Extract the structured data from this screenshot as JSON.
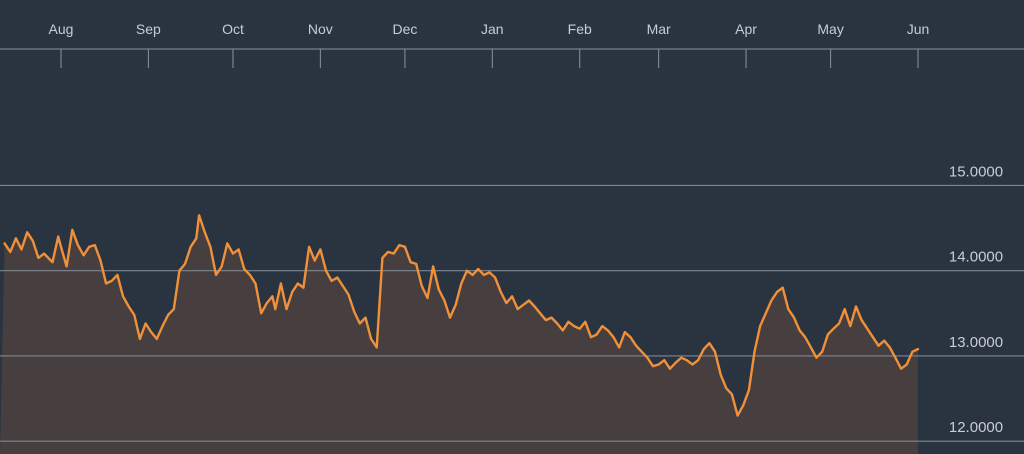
{
  "colors": {
    "background": "#2a3340",
    "line": "#f0913a",
    "area_fill": "#4a403f",
    "grid": "#7e8791",
    "text": "#c8cdd3",
    "top_rule": "#8a939c"
  },
  "chart_data": {
    "type": "area",
    "title": "",
    "xlabel": "",
    "ylabel": "",
    "ylim": [
      11.85,
      16.6
    ],
    "y_ticks": [
      {
        "value": 12,
        "label": "12.0000"
      },
      {
        "value": 13,
        "label": "13.0000"
      },
      {
        "value": 14,
        "label": "14.0000"
      },
      {
        "value": 15,
        "label": "15.0000"
      }
    ],
    "x_ticks": [
      {
        "label": "Aug",
        "day": 0
      },
      {
        "label": "Sep",
        "day": 31
      },
      {
        "label": "Oct",
        "day": 61
      },
      {
        "label": "Nov",
        "day": 92
      },
      {
        "label": "Dec",
        "day": 122
      },
      {
        "label": "Jan",
        "day": 153
      },
      {
        "label": "Feb",
        "day": 184
      },
      {
        "label": "Mar",
        "day": 212
      },
      {
        "label": "Apr",
        "day": 243
      },
      {
        "label": "May",
        "day": 273
      },
      {
        "label": "Jun",
        "day": 304
      }
    ],
    "grid": true,
    "series": [
      {
        "values": [
          [
            -20,
            14.32
          ],
          [
            -18,
            14.22
          ],
          [
            -16,
            14.38
          ],
          [
            -14,
            14.25
          ],
          [
            -12,
            14.45
          ],
          [
            -10,
            14.35
          ],
          [
            -8,
            14.15
          ],
          [
            -6,
            14.2
          ],
          [
            -3,
            14.1
          ],
          [
            -1,
            14.4
          ],
          [
            0,
            14.28
          ],
          [
            2,
            14.05
          ],
          [
            4,
            14.48
          ],
          [
            6,
            14.3
          ],
          [
            8,
            14.18
          ],
          [
            10,
            14.28
          ],
          [
            12,
            14.3
          ],
          [
            14,
            14.12
          ],
          [
            16,
            13.85
          ],
          [
            18,
            13.88
          ],
          [
            20,
            13.95
          ],
          [
            22,
            13.7
          ],
          [
            24,
            13.58
          ],
          [
            26,
            13.48
          ],
          [
            28,
            13.2
          ],
          [
            30,
            13.38
          ],
          [
            32,
            13.28
          ],
          [
            34,
            13.2
          ],
          [
            36,
            13.35
          ],
          [
            38,
            13.48
          ],
          [
            40,
            13.55
          ],
          [
            42,
            14.0
          ],
          [
            44,
            14.08
          ],
          [
            46,
            14.28
          ],
          [
            48,
            14.38
          ],
          [
            49,
            14.65
          ],
          [
            51,
            14.45
          ],
          [
            53,
            14.28
          ],
          [
            55,
            13.95
          ],
          [
            57,
            14.05
          ],
          [
            59,
            14.32
          ],
          [
            61,
            14.2
          ],
          [
            63,
            14.25
          ],
          [
            65,
            14.02
          ],
          [
            67,
            13.95
          ],
          [
            69,
            13.85
          ],
          [
            71,
            13.5
          ],
          [
            73,
            13.62
          ],
          [
            75,
            13.7
          ],
          [
            76,
            13.55
          ],
          [
            78,
            13.85
          ],
          [
            80,
            13.55
          ],
          [
            82,
            13.75
          ],
          [
            84,
            13.85
          ],
          [
            86,
            13.8
          ],
          [
            88,
            14.28
          ],
          [
            90,
            14.12
          ],
          [
            92,
            14.25
          ],
          [
            94,
            14.0
          ],
          [
            96,
            13.88
          ],
          [
            98,
            13.92
          ],
          [
            100,
            13.82
          ],
          [
            102,
            13.72
          ],
          [
            104,
            13.52
          ],
          [
            106,
            13.38
          ],
          [
            108,
            13.45
          ],
          [
            110,
            13.2
          ],
          [
            112,
            13.1
          ],
          [
            114,
            14.15
          ],
          [
            116,
            14.22
          ],
          [
            118,
            14.2
          ],
          [
            120,
            14.3
          ],
          [
            122,
            14.28
          ],
          [
            124,
            14.1
          ],
          [
            126,
            14.08
          ],
          [
            128,
            13.82
          ],
          [
            130,
            13.68
          ],
          [
            132,
            14.05
          ],
          [
            134,
            13.78
          ],
          [
            136,
            13.65
          ],
          [
            138,
            13.45
          ],
          [
            140,
            13.6
          ],
          [
            142,
            13.85
          ],
          [
            144,
            14.0
          ],
          [
            146,
            13.95
          ],
          [
            148,
            14.02
          ],
          [
            150,
            13.95
          ],
          [
            152,
            13.98
          ],
          [
            154,
            13.92
          ],
          [
            156,
            13.75
          ],
          [
            158,
            13.62
          ],
          [
            160,
            13.7
          ],
          [
            162,
            13.55
          ],
          [
            164,
            13.6
          ],
          [
            166,
            13.65
          ],
          [
            168,
            13.58
          ],
          [
            170,
            13.5
          ],
          [
            172,
            13.42
          ],
          [
            174,
            13.45
          ],
          [
            176,
            13.38
          ],
          [
            178,
            13.3
          ],
          [
            180,
            13.4
          ],
          [
            182,
            13.35
          ],
          [
            184,
            13.32
          ],
          [
            186,
            13.4
          ],
          [
            188,
            13.22
          ],
          [
            190,
            13.25
          ],
          [
            192,
            13.35
          ],
          [
            194,
            13.3
          ],
          [
            196,
            13.22
          ],
          [
            198,
            13.1
          ],
          [
            200,
            13.28
          ],
          [
            202,
            13.22
          ],
          [
            204,
            13.12
          ],
          [
            206,
            13.05
          ],
          [
            208,
            12.98
          ],
          [
            210,
            12.88
          ],
          [
            212,
            12.9
          ],
          [
            214,
            12.95
          ],
          [
            216,
            12.85
          ],
          [
            218,
            12.92
          ],
          [
            220,
            12.98
          ],
          [
            222,
            12.95
          ],
          [
            224,
            12.9
          ],
          [
            226,
            12.95
          ],
          [
            228,
            13.08
          ],
          [
            230,
            13.15
          ],
          [
            232,
            13.05
          ],
          [
            234,
            12.78
          ],
          [
            236,
            12.62
          ],
          [
            238,
            12.55
          ],
          [
            240,
            12.3
          ],
          [
            242,
            12.42
          ],
          [
            244,
            12.6
          ],
          [
            246,
            13.05
          ],
          [
            248,
            13.35
          ],
          [
            250,
            13.5
          ],
          [
            252,
            13.65
          ],
          [
            254,
            13.75
          ],
          [
            256,
            13.8
          ],
          [
            258,
            13.55
          ],
          [
            260,
            13.45
          ],
          [
            262,
            13.3
          ],
          [
            264,
            13.22
          ],
          [
            266,
            13.1
          ],
          [
            268,
            12.98
          ],
          [
            270,
            13.05
          ],
          [
            272,
            13.25
          ],
          [
            274,
            13.32
          ],
          [
            276,
            13.38
          ],
          [
            278,
            13.55
          ],
          [
            280,
            13.35
          ],
          [
            282,
            13.58
          ],
          [
            284,
            13.42
          ],
          [
            286,
            13.32
          ],
          [
            288,
            13.22
          ],
          [
            290,
            13.12
          ],
          [
            292,
            13.18
          ],
          [
            294,
            13.1
          ],
          [
            296,
            12.98
          ],
          [
            298,
            12.85
          ],
          [
            300,
            12.9
          ],
          [
            302,
            13.05
          ],
          [
            304,
            13.08
          ]
        ]
      }
    ]
  }
}
